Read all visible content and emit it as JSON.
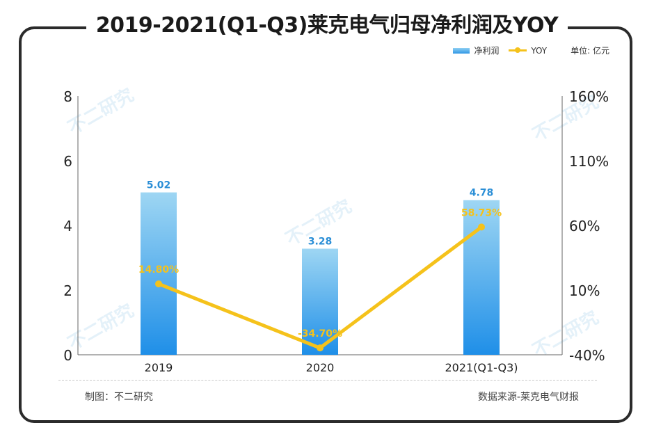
{
  "title": "2019-2021(Q1-Q3)莱克电气归母净利润及YOY",
  "legend": {
    "bar_label": "净利润",
    "line_label": "YOY",
    "unit": "单位: 亿元"
  },
  "footer": {
    "left": "制图：不二研究",
    "right": "数据来源-莱克电气财报"
  },
  "watermark": "不二研究",
  "colors": {
    "bar_top": "#9ed6f3",
    "bar_bottom": "#1f8fe8",
    "line": "#f5c21b",
    "bar_label": "#2a8ed6",
    "line_label": "#f5c21b"
  },
  "chart_data": {
    "type": "bar",
    "categories": [
      "2019",
      "2020",
      "2021(Q1-Q3)"
    ],
    "series": [
      {
        "name": "净利润",
        "type": "bar",
        "axis": "left",
        "values": [
          5.02,
          3.28,
          4.78
        ],
        "labels": [
          "5.02",
          "3.28",
          "4.78"
        ]
      },
      {
        "name": "YOY",
        "type": "line",
        "axis": "right",
        "values": [
          14.8,
          -34.7,
          58.73
        ],
        "labels": [
          "14.80%",
          "-34.70%",
          "58.73%"
        ]
      }
    ],
    "y_left": {
      "min": 0,
      "max": 8,
      "ticks": [
        "0",
        "2",
        "4",
        "6",
        "8"
      ],
      "tick_values": [
        0,
        2,
        4,
        6,
        8
      ]
    },
    "y_right": {
      "min": -40,
      "max": 160,
      "ticks": [
        "-40%",
        "10%",
        "60%",
        "110%",
        "160%"
      ],
      "tick_values": [
        -40,
        10,
        60,
        110,
        160
      ]
    },
    "grid": false,
    "legend_position": "top-right"
  }
}
